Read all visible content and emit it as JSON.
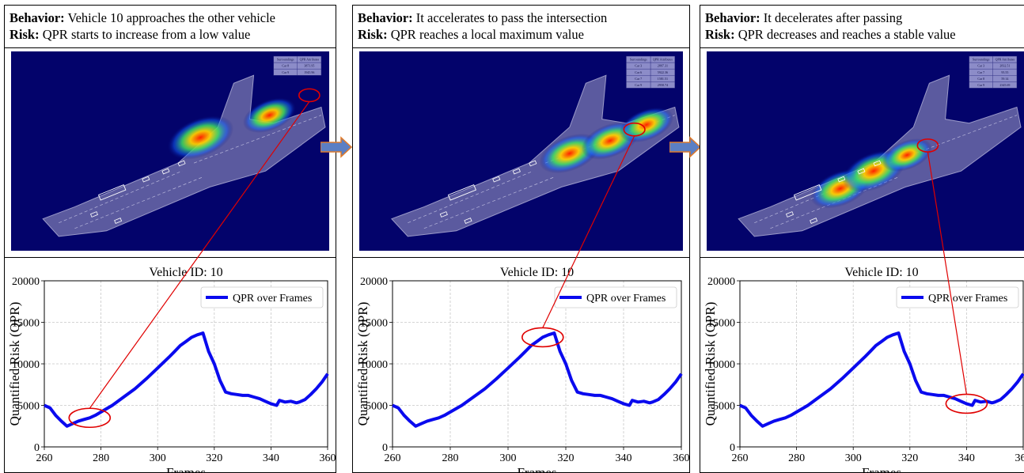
{
  "panels": [
    {
      "behavior_label": "Behavior:",
      "behavior": "Vehicle 10 approaches the other vehicle",
      "risk_label": "Risk:",
      "risk": "QPR starts to increase from a low value",
      "table": {
        "headers": [
          "Surroundings",
          "QPR Attributes"
        ],
        "rows": [
          [
            "Car 8",
            "3871.95"
          ],
          [
            "Car 9",
            "1945.96"
          ]
        ]
      }
    },
    {
      "behavior_label": "Behavior:",
      "behavior": "It accelerates to pass the intersection",
      "risk_label": "Risk:",
      "risk": "QPR reaches a local maximum value",
      "table": {
        "headers": [
          "Surroundings",
          "QPR Attributes"
        ],
        "rows": [
          [
            "Car 3",
            "2897.31"
          ],
          [
            "Car 6",
            "5922.36"
          ],
          [
            "Car 7",
            "1581.51"
          ],
          [
            "Car 9",
            "2958.74"
          ]
        ]
      }
    },
    {
      "behavior_label": "Behavior:",
      "behavior": "It decelerates after passing",
      "risk_label": "Risk:",
      "risk": "QPR decreases and reaches a stable value",
      "table": {
        "headers": [
          "Surroundings",
          "QPR Attributes"
        ],
        "rows": [
          [
            "Car 3",
            "2832.51"
          ],
          [
            "Car 7",
            "95.55"
          ],
          [
            "Car 8",
            "59.14"
          ],
          [
            "Car 9",
            "2345.69"
          ]
        ]
      }
    }
  ],
  "colors": {
    "line": "#0a0aee",
    "highlight": "#e00000",
    "map_bg": "#03036b",
    "arrow": "#5b7fc4"
  },
  "chart_data": [
    {
      "type": "line",
      "title": "Vehicle ID: 10",
      "xlabel": "Frames",
      "ylabel": "Quantified Risk (QPR)",
      "xlim": [
        260,
        360
      ],
      "ylim": [
        0,
        20000
      ],
      "xticks": [
        260,
        280,
        300,
        320,
        340,
        360
      ],
      "yticks": [
        0,
        5000,
        10000,
        15000,
        20000
      ],
      "grid": true,
      "legend": "top-right",
      "series": [
        {
          "name": "QPR over Frames",
          "x": [
            260,
            262,
            264,
            266,
            268,
            270,
            272,
            274,
            276,
            278,
            280,
            284,
            288,
            292,
            296,
            300,
            304,
            306,
            308,
            310,
            312,
            314,
            316,
            318,
            320,
            322,
            324,
            326,
            328,
            330,
            332,
            334,
            336,
            338,
            340,
            342,
            343,
            345,
            347,
            349,
            350,
            352,
            354,
            356,
            358,
            360
          ],
          "y": [
            5000,
            4700,
            3800,
            3100,
            2500,
            2800,
            3100,
            3300,
            3500,
            3800,
            4200,
            5000,
            6000,
            7000,
            8200,
            9500,
            10800,
            11500,
            12200,
            12700,
            13200,
            13500,
            13700,
            11500,
            10000,
            8000,
            6600,
            6400,
            6300,
            6200,
            6200,
            6000,
            5800,
            5500,
            5200,
            5000,
            5600,
            5400,
            5500,
            5300,
            5400,
            5700,
            6300,
            7000,
            7800,
            8800
          ]
        }
      ]
    },
    {
      "ref": "same as panel 1",
      "type": "line",
      "title": "Vehicle ID: 10",
      "xlabel": "Frames",
      "ylabel": "Quantified Risk (QPR)",
      "xlim": [
        260,
        360
      ],
      "ylim": [
        0,
        20000
      ],
      "legend": "top-right",
      "series_name": "QPR over Frames",
      "highlight_frame": 312
    },
    {
      "ref": "same as panel 1",
      "type": "line",
      "title": "Vehicle ID: 10",
      "xlabel": "Frames",
      "ylabel": "Quantified Risk (QPR)",
      "xlim": [
        260,
        360
      ],
      "ylim": [
        0,
        20000
      ],
      "legend": "top-right",
      "series_name": "QPR over Frames",
      "highlight_frame": 340
    }
  ],
  "highlight_frames": [
    276,
    312,
    340
  ],
  "icons": {
    "flow_arrow": "right-arrow-icon"
  }
}
